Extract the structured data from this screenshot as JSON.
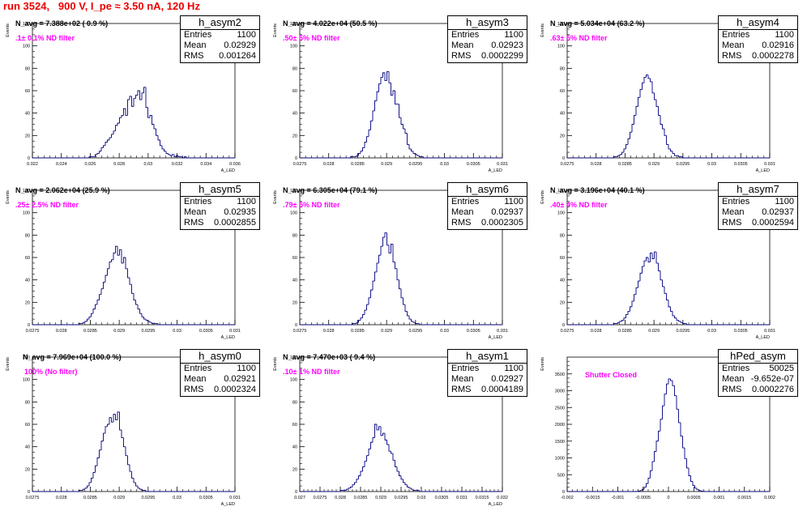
{
  "page_title": "run 3524,   900 V, I_pe ≈ 3.50 nA, 120 Hz",
  "colors": {
    "title": "#ee0000",
    "histogram": "#00007f",
    "note": "#ff00ff",
    "axis": "#000000"
  },
  "stat_labels": {
    "entries": "Entries",
    "mean": "Mean",
    "rms": "RMS"
  },
  "chart_data": [
    {
      "type": "histogram",
      "name": "h_asym2",
      "title": "N_avg = 7.388e+02 ( 0.9 %)",
      "note": ".1± 0.1% ND filter",
      "entries": "1100",
      "mean": "0.02929",
      "rms": "0.001264",
      "ylabel": "Events",
      "xlabel": "A_LED",
      "xlim": [
        0.022,
        0.036
      ],
      "ylim": [
        0,
        120
      ],
      "xticks": [
        "0.022",
        "0.024",
        "0.026",
        "0.028",
        "0.03",
        "0.032",
        "0.034",
        "0.036"
      ],
      "yticks": [
        "0",
        "20",
        "40",
        "60",
        "80",
        "100",
        "120"
      ],
      "x_start": 0.022,
      "bin_width": 0.00014,
      "counts": [
        0,
        0,
        0,
        0,
        0,
        0,
        0,
        0,
        0,
        0,
        0,
        0,
        0,
        0,
        0,
        0,
        0,
        0,
        0,
        0,
        0,
        0,
        0,
        0,
        0,
        0,
        0,
        0,
        1,
        1,
        1,
        3,
        4,
        6,
        9,
        11,
        14,
        16,
        18,
        21,
        24,
        29,
        31,
        36,
        38,
        44,
        38,
        52,
        55,
        46,
        53,
        56,
        60,
        52,
        58,
        63,
        45,
        36,
        38,
        30,
        26,
        20,
        16,
        11,
        8,
        6,
        4,
        3,
        2,
        3,
        1,
        2,
        1,
        1,
        0,
        1,
        0,
        0,
        0,
        0,
        0,
        0,
        0,
        0,
        0,
        0,
        0,
        0,
        0,
        0,
        0,
        0,
        0,
        0,
        0,
        0,
        0,
        0,
        0,
        0
      ]
    },
    {
      "type": "histogram",
      "name": "h_asym3",
      "title": "N_avg = 4.022e+04 (50.5 %)",
      "note": ".50± 5% ND filter",
      "entries": "1100",
      "mean": "0.02923",
      "rms": "0.0002299",
      "ylabel": "Events",
      "xlabel": "A_LED",
      "xlim": [
        0.0275,
        0.031
      ],
      "ylim": [
        0,
        120
      ],
      "xticks": [
        "0.0275",
        "0.028",
        "0.0285",
        "0.029",
        "0.0295",
        "0.03",
        "0.0305",
        "0.031"
      ],
      "yticks": [
        "0",
        "20",
        "40",
        "60",
        "80",
        "100",
        "120"
      ],
      "x_start": 0.0275,
      "bin_width": 3.5e-05,
      "counts": [
        0,
        0,
        0,
        0,
        0,
        0,
        0,
        0,
        0,
        0,
        0,
        0,
        0,
        0,
        0,
        0,
        0,
        0,
        0,
        0,
        0,
        0,
        0,
        0,
        0,
        1,
        1,
        1,
        2,
        4,
        6,
        9,
        14,
        19,
        25,
        33,
        42,
        51,
        59,
        66,
        72,
        76,
        69,
        77,
        67,
        56,
        60,
        48,
        48,
        36,
        30,
        26,
        22,
        12,
        8,
        6,
        4,
        3,
        2,
        1,
        1,
        0,
        0,
        0,
        0,
        0,
        0,
        0,
        0,
        0,
        0,
        0,
        0,
        0,
        0,
        0,
        0,
        0,
        0,
        0,
        0,
        0,
        0,
        0,
        0,
        0,
        0,
        0,
        0,
        0,
        0,
        0,
        0,
        0,
        0,
        0,
        0,
        0,
        0,
        0
      ]
    },
    {
      "type": "histogram",
      "name": "h_asym4",
      "title": "N_avg = 5.034e+04 (63.2 %)",
      "note": ".63± 5% ND filter",
      "entries": "1100",
      "mean": "0.02916",
      "rms": "0.0002278",
      "ylabel": "Events",
      "xlabel": "A_LED",
      "xlim": [
        0.0275,
        0.031
      ],
      "ylim": [
        0,
        120
      ],
      "xticks": [
        "0.0275",
        "0.028",
        "0.0285",
        "0.029",
        "0.0295",
        "0.03",
        "0.0305",
        "0.031"
      ],
      "yticks": [
        "0",
        "20",
        "40",
        "60",
        "80",
        "100",
        "120"
      ],
      "x_start": 0.0275,
      "bin_width": 3.5e-05,
      "counts": [
        0,
        0,
        0,
        0,
        0,
        0,
        0,
        0,
        0,
        0,
        0,
        0,
        0,
        0,
        0,
        0,
        0,
        0,
        0,
        0,
        0,
        0,
        0,
        1,
        1,
        2,
        3,
        5,
        8,
        12,
        17,
        23,
        30,
        38,
        46,
        54,
        61,
        67,
        72,
        74,
        71,
        68,
        58,
        52,
        46,
        38,
        30,
        26,
        20,
        12,
        8,
        6,
        4,
        2,
        2,
        1,
        1,
        0,
        0,
        0,
        0,
        0,
        0,
        0,
        0,
        0,
        0,
        0,
        0,
        0,
        0,
        0,
        0,
        0,
        0,
        0,
        0,
        0,
        0,
        0,
        0,
        0,
        0,
        0,
        0,
        0,
        0,
        0,
        0,
        0,
        0,
        0,
        0,
        0,
        0,
        0,
        0,
        0,
        0,
        0
      ]
    },
    {
      "type": "histogram",
      "name": "h_asym5",
      "title": "N_avg = 2.062e+04 (25.9 %)",
      "note": ".25± 2.5% ND filter",
      "entries": "1100",
      "mean": "0.02935",
      "rms": "0.0002855",
      "ylabel": "Events",
      "xlabel": "A_LED",
      "xlim": [
        0.0275,
        0.031
      ],
      "ylim": [
        0,
        120
      ],
      "xticks": [
        "0.0275",
        "0.028",
        "0.0285",
        "0.029",
        "0.0295",
        "0.03",
        "0.0305",
        "0.031"
      ],
      "yticks": [
        "0",
        "20",
        "40",
        "60",
        "80",
        "100",
        "120"
      ],
      "x_start": 0.0275,
      "bin_width": 3.5e-05,
      "counts": [
        0,
        0,
        0,
        0,
        0,
        0,
        0,
        0,
        0,
        0,
        0,
        0,
        0,
        0,
        0,
        0,
        0,
        0,
        0,
        0,
        0,
        0,
        0,
        1,
        1,
        2,
        3,
        5,
        7,
        10,
        14,
        18,
        22,
        27,
        32,
        38,
        44,
        50,
        56,
        58,
        64,
        70,
        62,
        67,
        55,
        60,
        50,
        42,
        36,
        28,
        22,
        18,
        14,
        10,
        7,
        5,
        4,
        3,
        2,
        1,
        1,
        1,
        0,
        0,
        0,
        0,
        0,
        0,
        0,
        0,
        0,
        0,
        0,
        0,
        0,
        0,
        0,
        0,
        0,
        0,
        0,
        0,
        0,
        0,
        0,
        0,
        0,
        0,
        0,
        0,
        0,
        0,
        0,
        0,
        0,
        0,
        0,
        0,
        0,
        0
      ]
    },
    {
      "type": "histogram",
      "name": "h_asym6",
      "title": "N_avg = 6.305e+04 (79.1 %)",
      "note": ".79± 5% ND filter",
      "entries": "1100",
      "mean": "0.02937",
      "rms": "0.0002305",
      "ylabel": "Events",
      "xlabel": "A_LED",
      "xlim": [
        0.0275,
        0.031
      ],
      "ylim": [
        0,
        120
      ],
      "xticks": [
        "0.0275",
        "0.028",
        "0.0285",
        "0.029",
        "0.0295",
        "0.03",
        "0.0305",
        "0.031"
      ],
      "yticks": [
        "0",
        "20",
        "40",
        "60",
        "80",
        "100",
        "120"
      ],
      "x_start": 0.0275,
      "bin_width": 3.5e-05,
      "counts": [
        0,
        0,
        0,
        0,
        0,
        0,
        0,
        0,
        0,
        0,
        0,
        0,
        0,
        0,
        0,
        0,
        0,
        0,
        0,
        0,
        0,
        0,
        0,
        0,
        0,
        0,
        1,
        1,
        2,
        4,
        6,
        9,
        13,
        18,
        24,
        31,
        39,
        47,
        55,
        62,
        70,
        78,
        82,
        71,
        64,
        72,
        56,
        50,
        40,
        32,
        24,
        18,
        12,
        8,
        5,
        3,
        2,
        1,
        1,
        0,
        0,
        0,
        0,
        0,
        0,
        0,
        0,
        0,
        0,
        0,
        0,
        0,
        0,
        0,
        0,
        0,
        0,
        0,
        0,
        0,
        0,
        0,
        0,
        0,
        0,
        0,
        0,
        0,
        0,
        0,
        0,
        0,
        0,
        0,
        0,
        0,
        0,
        0,
        0,
        0
      ]
    },
    {
      "type": "histogram",
      "name": "h_asym7",
      "title": "N_avg = 3.196e+04 (40.1 %)",
      "note": ".40± 4% ND filter",
      "entries": "1100",
      "mean": "0.02937",
      "rms": "0.0002594",
      "ylabel": "Events",
      "xlabel": "A_LED",
      "xlim": [
        0.0275,
        0.031
      ],
      "ylim": [
        0,
        120
      ],
      "xticks": [
        "0.0275",
        "0.028",
        "0.0285",
        "0.029",
        "0.0295",
        "0.03",
        "0.0305",
        "0.031"
      ],
      "yticks": [
        "0",
        "20",
        "40",
        "60",
        "80",
        "100",
        "120"
      ],
      "x_start": 0.0275,
      "bin_width": 3.5e-05,
      "counts": [
        0,
        0,
        0,
        0,
        0,
        0,
        0,
        0,
        0,
        0,
        0,
        0,
        0,
        0,
        0,
        0,
        0,
        0,
        0,
        0,
        0,
        0,
        0,
        1,
        1,
        2,
        3,
        4,
        6,
        9,
        12,
        16,
        21,
        27,
        33,
        39,
        46,
        52,
        57,
        60,
        56,
        64,
        59,
        65,
        55,
        48,
        40,
        34,
        28,
        22,
        16,
        12,
        8,
        6,
        4,
        3,
        2,
        1,
        1,
        0,
        0,
        0,
        0,
        0,
        0,
        0,
        0,
        0,
        0,
        0,
        0,
        0,
        0,
        0,
        0,
        0,
        0,
        0,
        0,
        0,
        0,
        0,
        0,
        0,
        0,
        0,
        0,
        0,
        0,
        0,
        0,
        0,
        0,
        0,
        0,
        0,
        0,
        0,
        0,
        0
      ]
    },
    {
      "type": "histogram",
      "name": "h_asym0",
      "title": "N_avg = 7.969e+04 (100.0 %)",
      "note": "100% (No filter)",
      "entries": "1100",
      "mean": "0.02921",
      "rms": "0.0002324",
      "ylabel": "Events",
      "xlabel": "A_LED",
      "xlim": [
        0.0275,
        0.031
      ],
      "ylim": [
        0,
        120
      ],
      "xticks": [
        "0.0275",
        "0.028",
        "0.0285",
        "0.029",
        "0.0295",
        "0.03",
        "0.0305",
        "0.031"
      ],
      "yticks": [
        "0",
        "20",
        "40",
        "60",
        "80",
        "100",
        "120"
      ],
      "x_start": 0.0275,
      "bin_width": 3.5e-05,
      "counts": [
        0,
        0,
        0,
        0,
        0,
        0,
        0,
        0,
        0,
        0,
        0,
        0,
        0,
        0,
        0,
        0,
        0,
        0,
        0,
        0,
        0,
        0,
        0,
        1,
        1,
        2,
        3,
        5,
        8,
        12,
        17,
        23,
        30,
        37,
        45,
        52,
        58,
        60,
        66,
        62,
        69,
        64,
        71,
        55,
        48,
        40,
        32,
        24,
        18,
        12,
        8,
        5,
        3,
        2,
        1,
        1,
        0,
        0,
        0,
        0,
        0,
        0,
        0,
        0,
        0,
        0,
        0,
        0,
        0,
        0,
        0,
        0,
        0,
        0,
        0,
        0,
        0,
        0,
        0,
        0,
        0,
        0,
        0,
        0,
        0,
        0,
        0,
        0,
        0,
        0,
        0,
        0,
        0,
        0,
        0,
        0,
        0,
        0,
        0,
        0
      ]
    },
    {
      "type": "histogram",
      "name": "h_asym1",
      "title": "N_avg = 7.470e+03 ( 9.4 %)",
      "note": ".10± 1% ND filter",
      "entries": "1100",
      "mean": "0.02927",
      "rms": "0.0004189",
      "ylabel": "Events",
      "xlabel": "A_LED",
      "xlim": [
        0.027,
        0.032
      ],
      "ylim": [
        0,
        120
      ],
      "xticks": [
        "0.027",
        "0.0275",
        "0.028",
        "0.0285",
        "0.029",
        "0.0295",
        "0.03",
        "0.0305",
        "0.031",
        "0.0315",
        "0.032"
      ],
      "yticks": [
        "0",
        "20",
        "40",
        "60",
        "80",
        "100",
        "120"
      ],
      "x_start": 0.027,
      "bin_width": 5e-05,
      "counts": [
        0,
        0,
        0,
        0,
        0,
        0,
        0,
        0,
        0,
        0,
        0,
        0,
        0,
        0,
        0,
        0,
        0,
        0,
        0,
        0,
        1,
        1,
        1,
        2,
        3,
        4,
        6,
        8,
        11,
        14,
        18,
        22,
        27,
        32,
        38,
        44,
        48,
        60,
        55,
        58,
        50,
        52,
        46,
        42,
        36,
        34,
        28,
        22,
        18,
        14,
        11,
        8,
        6,
        4,
        3,
        2,
        1,
        1,
        1,
        0,
        0,
        0,
        0,
        0,
        0,
        0,
        0,
        0,
        0,
        0,
        0,
        0,
        0,
        0,
        0,
        0,
        0,
        0,
        0,
        0,
        0,
        0,
        0,
        0,
        0,
        0,
        0,
        0,
        0,
        0,
        0,
        0,
        0,
        0,
        0,
        0,
        0,
        0,
        0,
        0
      ]
    },
    {
      "type": "histogram",
      "name": "hPed_asym",
      "title": "",
      "note": "Shutter Closed",
      "entries": "50025",
      "mean": "-9.652e-07",
      "rms": "0.0002276",
      "ylabel": "Events",
      "xlabel": "",
      "xlim": [
        -0.002,
        0.002
      ],
      "ylim": [
        0,
        4000
      ],
      "xticks": [
        "-0.002",
        "-0.0015",
        "-0.001",
        "-0.0005",
        "0",
        "0.0005",
        "0.001",
        "0.0015",
        "0.002"
      ],
      "yticks": [
        "0",
        "500",
        "1000",
        "1500",
        "2000",
        "2500",
        "3000",
        "3500"
      ],
      "x_start": -0.002,
      "bin_width": 4e-05,
      "counts": [
        0,
        0,
        0,
        0,
        0,
        0,
        0,
        0,
        0,
        0,
        0,
        0,
        0,
        0,
        0,
        0,
        0,
        0,
        0,
        0,
        0,
        0,
        0,
        0,
        0,
        0,
        0,
        0,
        0,
        0,
        0,
        0,
        0,
        1,
        4,
        12,
        29,
        64,
        129,
        238,
        400,
        620,
        890,
        1190,
        1500,
        1800,
        2150,
        2550,
        2900,
        3200,
        3350,
        3300,
        3150,
        2850,
        2450,
        2050,
        1650,
        1300,
        980,
        700,
        470,
        300,
        180,
        100,
        55,
        28,
        12,
        5,
        2,
        1,
        0,
        0,
        0,
        0,
        0,
        0,
        0,
        0,
        0,
        0,
        0,
        0,
        0,
        0,
        0,
        0,
        0,
        0,
        0,
        0,
        0,
        0,
        0,
        0,
        0,
        0,
        0,
        0,
        0,
        0
      ]
    }
  ]
}
